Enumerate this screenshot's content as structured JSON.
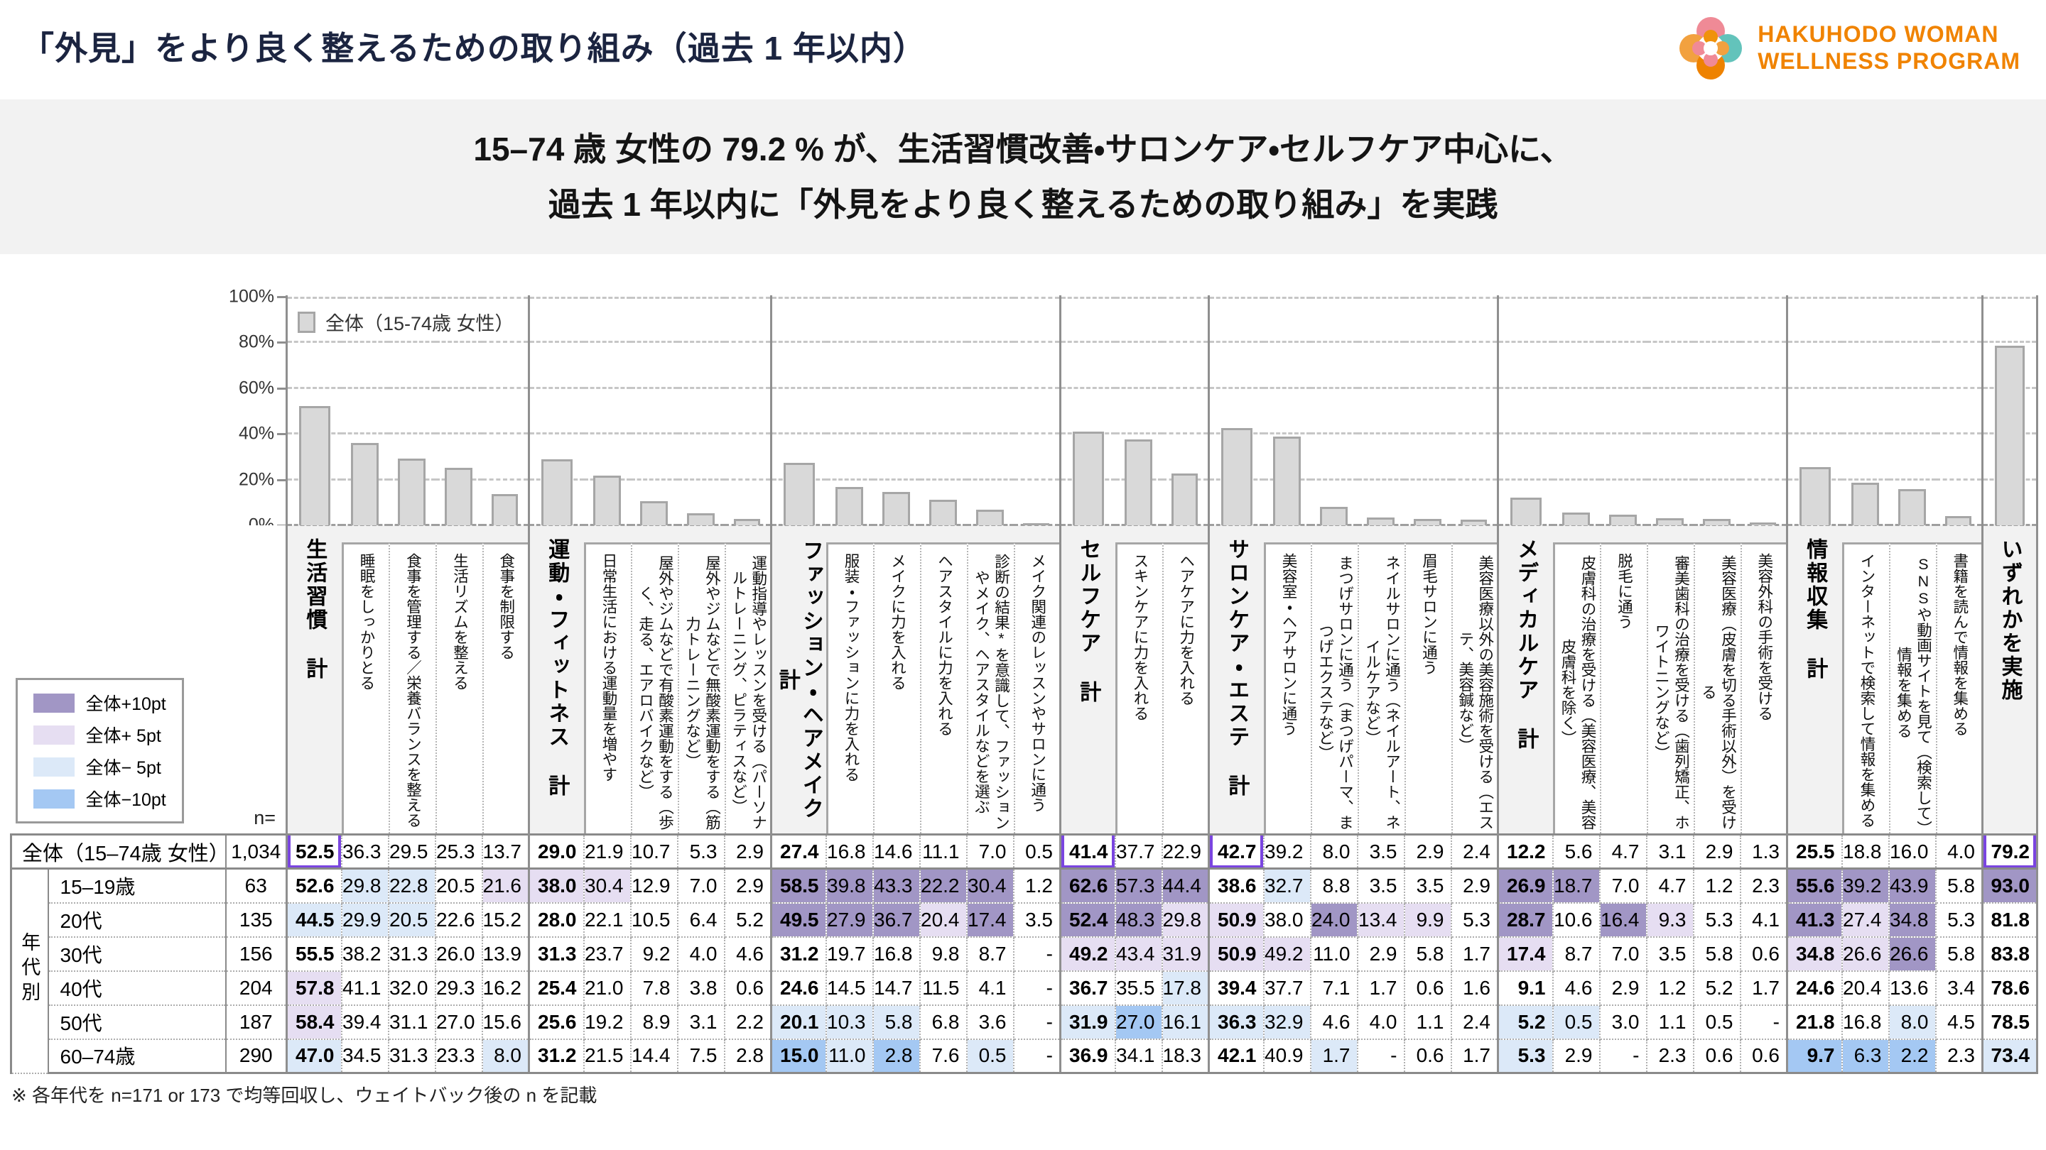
{
  "header": {
    "title": "「外見」をより良く整えるための取り組み（過去 1 年以内）",
    "logo": {
      "line1": "HAKUHODO WOMAN",
      "line2": "WELLNESS PROGRAM"
    }
  },
  "subtitle": {
    "line1": "15–74 歳 女性の 79.2 % が、生活習慣改善・サロンケア・セルフケア中心に、",
    "line2": "過去 1 年以内に「外見をより良く整えるための取り組み」を実践"
  },
  "chart_data": {
    "type": "bar",
    "title": "「外見」をより良く整えるための取り組み（過去1年以内）",
    "legend": "全体（15-74歳 女性）",
    "legend_position": "top-left",
    "grid": "dashed-horizontal",
    "ylim": [
      0,
      100
    ],
    "y_ticks": [
      "0%",
      "20%",
      "40%",
      "60%",
      "80%",
      "100%"
    ],
    "bar_color": "#d9d9d9",
    "bar_border": "#a6a6a6",
    "groups": [
      {
        "total": "生活習慣 計",
        "items": [
          "睡眠をしっかりとる",
          "食事を管理する／栄養バランスを整える",
          "生活リズムを整える",
          "食事を制限する"
        ]
      },
      {
        "total": "運動・フィットネス 計",
        "items": [
          "日常生活における運動量を増やす",
          "屋外やジムなどで有酸素運動をする（歩く、走る、エアロバイクなど）",
          "屋外やジムなどで無酸素運動をする（筋力トレーニングなど）",
          "運動指導やレッスンを受ける（パーソナルトレーニング、ピラティスなど）"
        ]
      },
      {
        "total": "ファッション・ヘアメイク 計",
        "items": [
          "服装・ファッションに力を入れる",
          "メイクに力を入れる",
          "ヘアスタイルに力を入れる",
          "診断の結果*を意識して、ファッションやメイク、ヘアスタイルなどを選ぶ",
          "メイク関連のレッスンやサロンに通う"
        ]
      },
      {
        "total": "セルフケア 計",
        "items": [
          "スキンケアに力を入れる",
          "ヘアケアに力を入れる"
        ]
      },
      {
        "total": "サロンケア・エステ 計",
        "items": [
          "美容室・ヘアサロンに通う",
          "まつげサロンに通う（まつげパーマ、まつげエクステなど）",
          "ネイルサロンに通う（ネイルアート、ネイルケアなど）",
          "眉毛サロンに通う",
          "美容医療以外の美容施術を受ける（エステ、美容鍼など）"
        ]
      },
      {
        "total": "メディカルケア 計",
        "items": [
          "皮膚科の治療を受ける（美容医療、美容皮膚科を除く）",
          "脱毛に通う",
          "審美歯科の治療を受ける（歯列矯正、ホワイトニングなど）",
          "美容医療（皮膚を切る手術以外）を受ける",
          "美容外科の手術を受ける"
        ]
      },
      {
        "total": "情報収集 計",
        "items": [
          "インターネットで検索して情報を集める",
          "SNSや動画サイトを見て（検索して）情報を集める",
          "書籍を読んで情報を集める"
        ]
      }
    ],
    "any_label": "いずれかを実施",
    "values": [
      52.5,
      36.3,
      29.5,
      25.3,
      13.7,
      29.0,
      21.9,
      10.7,
      5.3,
      2.9,
      27.4,
      16.8,
      14.6,
      11.1,
      7.0,
      0.5,
      41.4,
      37.7,
      22.9,
      42.7,
      39.2,
      8.0,
      3.5,
      2.9,
      2.4,
      12.2,
      5.6,
      4.7,
      3.1,
      2.9,
      1.3,
      25.5,
      18.8,
      16.0,
      4.0,
      79.2
    ]
  },
  "diff_legend": {
    "items": [
      {
        "label": "全体+10pt",
        "color": "#a196c5"
      },
      {
        "label": "全体+ 5pt",
        "color": "#e6def2"
      },
      {
        "label": "全体− 5pt",
        "color": "#dce9f8"
      },
      {
        "label": "全体−10pt",
        "color": "#a4c8f3"
      }
    ]
  },
  "table": {
    "n_label": "n=",
    "side_label": "年代別",
    "highlight_columns": [
      0,
      16,
      19,
      35
    ],
    "rows": [
      {
        "label": "全体（15–74歳 女性）",
        "n": "1,034",
        "values": [
          "52.5",
          "36.3",
          "29.5",
          "25.3",
          "13.7",
          "29.0",
          "21.9",
          "10.7",
          "5.3",
          "2.9",
          "27.4",
          "16.8",
          "14.6",
          "11.1",
          "7.0",
          "0.5",
          "41.4",
          "37.7",
          "22.9",
          "42.7",
          "39.2",
          "8.0",
          "3.5",
          "2.9",
          "2.4",
          "12.2",
          "5.6",
          "4.7",
          "3.1",
          "2.9",
          "1.3",
          "25.5",
          "18.8",
          "16.0",
          "4.0",
          "79.2"
        ]
      },
      {
        "label": "15–19歳",
        "n": "63",
        "values": [
          "52.6",
          "29.8",
          "22.8",
          "20.5",
          "21.6",
          "38.0",
          "30.4",
          "12.9",
          "7.0",
          "2.9",
          "58.5",
          "39.8",
          "43.3",
          "22.2",
          "30.4",
          "1.2",
          "62.6",
          "57.3",
          "44.4",
          "38.6",
          "32.7",
          "8.8",
          "3.5",
          "3.5",
          "2.9",
          "26.9",
          "18.7",
          "7.0",
          "4.7",
          "1.2",
          "2.3",
          "55.6",
          "39.2",
          "43.9",
          "5.8",
          "93.0"
        ]
      },
      {
        "label": "20代",
        "n": "135",
        "values": [
          "44.5",
          "29.9",
          "20.5",
          "22.6",
          "15.2",
          "28.0",
          "22.1",
          "10.5",
          "6.4",
          "5.2",
          "49.5",
          "27.9",
          "36.7",
          "20.4",
          "17.4",
          "3.5",
          "52.4",
          "48.3",
          "29.8",
          "50.9",
          "38.0",
          "24.0",
          "13.4",
          "9.9",
          "5.3",
          "28.7",
          "10.6",
          "16.4",
          "9.3",
          "5.3",
          "4.1",
          "41.3",
          "27.4",
          "34.8",
          "5.3",
          "81.8"
        ]
      },
      {
        "label": "30代",
        "n": "156",
        "values": [
          "55.5",
          "38.2",
          "31.3",
          "26.0",
          "13.9",
          "31.3",
          "23.7",
          "9.2",
          "4.0",
          "4.6",
          "31.2",
          "19.7",
          "16.8",
          "9.8",
          "8.7",
          "-",
          "49.2",
          "43.4",
          "31.9",
          "50.9",
          "49.2",
          "11.0",
          "2.9",
          "5.8",
          "1.7",
          "17.4",
          "8.7",
          "7.0",
          "3.5",
          "5.8",
          "0.6",
          "34.8",
          "26.6",
          "26.6",
          "5.8",
          "83.8"
        ]
      },
      {
        "label": "40代",
        "n": "204",
        "values": [
          "57.8",
          "41.1",
          "32.0",
          "29.3",
          "16.2",
          "25.4",
          "21.0",
          "7.8",
          "3.8",
          "0.6",
          "24.6",
          "14.5",
          "14.7",
          "11.5",
          "4.1",
          "-",
          "36.7",
          "35.5",
          "17.8",
          "39.4",
          "37.7",
          "7.1",
          "1.7",
          "0.6",
          "1.6",
          "9.1",
          "4.6",
          "2.9",
          "1.2",
          "5.2",
          "1.7",
          "24.6",
          "20.4",
          "13.6",
          "3.4",
          "78.6"
        ]
      },
      {
        "label": "50代",
        "n": "187",
        "values": [
          "58.4",
          "39.4",
          "31.1",
          "27.0",
          "15.6",
          "25.6",
          "19.2",
          "8.9",
          "3.1",
          "2.2",
          "20.1",
          "10.3",
          "5.8",
          "6.8",
          "3.6",
          "-",
          "31.9",
          "27.0",
          "16.1",
          "36.3",
          "32.9",
          "4.6",
          "4.0",
          "1.1",
          "2.4",
          "5.2",
          "0.5",
          "3.0",
          "1.1",
          "0.5",
          "-",
          "21.8",
          "16.8",
          "8.0",
          "4.5",
          "78.5"
        ]
      },
      {
        "label": "60–74歳",
        "n": "290",
        "values": [
          "47.0",
          "34.5",
          "31.3",
          "23.3",
          "8.0",
          "31.2",
          "21.5",
          "14.4",
          "7.5",
          "2.8",
          "15.0",
          "11.0",
          "2.8",
          "7.6",
          "0.5",
          "-",
          "36.9",
          "34.1",
          "18.3",
          "42.1",
          "40.9",
          "1.7",
          "-",
          "0.6",
          "1.7",
          "5.3",
          "2.9",
          "-",
          "2.3",
          "0.6",
          "0.6",
          "9.7",
          "6.3",
          "2.2",
          "2.3",
          "73.4"
        ]
      }
    ]
  },
  "footnote": "※ 各年代を n=171 or 173 で均等回収し、ウェイトバック後の n を記載"
}
